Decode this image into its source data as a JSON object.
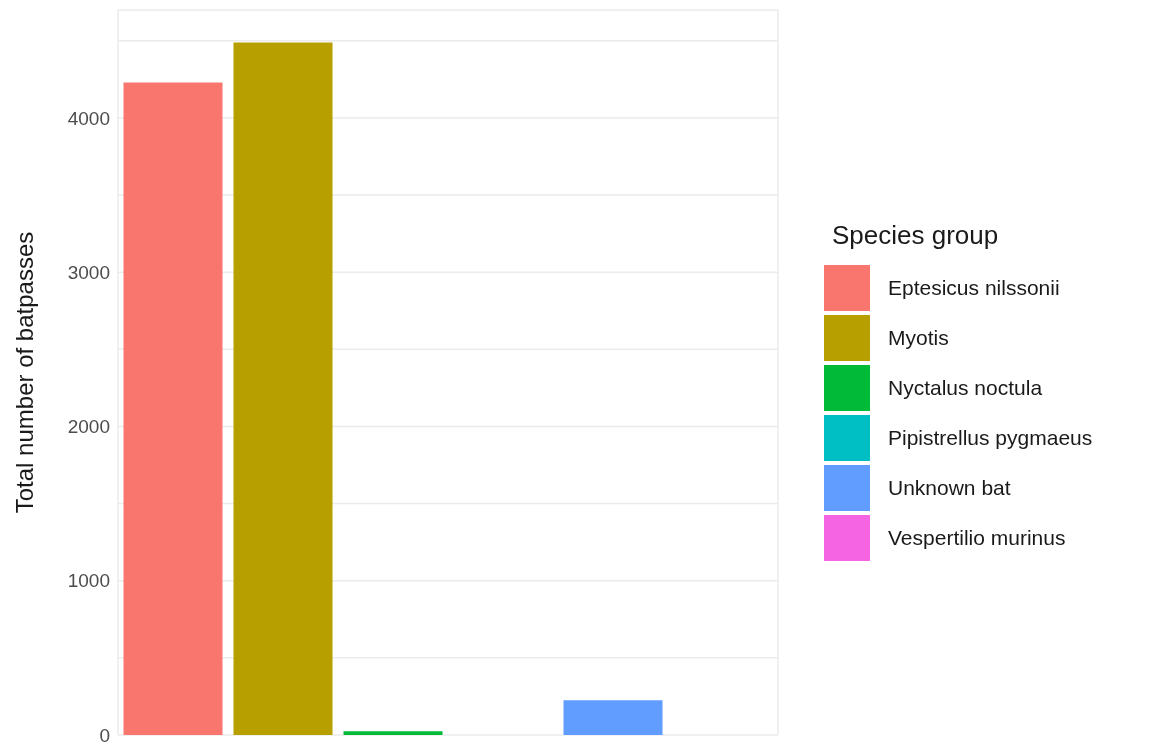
{
  "chart_data": {
    "type": "bar",
    "ylabel": "Total number of batpasses",
    "legend_title": "Species group",
    "categories": [
      null,
      null,
      null,
      null,
      null,
      null
    ],
    "stacked": true,
    "series": [
      {
        "name": "Eptesicus nilssonii",
        "color": "#f8766d",
        "values": [
          4230,
          null,
          null,
          null,
          null,
          null
        ]
      },
      {
        "name": "Myotis",
        "color": "#b79f00",
        "values": [
          null,
          4490,
          null,
          null,
          null,
          null
        ]
      },
      {
        "name": "Nyctalus noctula",
        "color": "#00ba38",
        "values": [
          null,
          null,
          25,
          null,
          null,
          null
        ]
      },
      {
        "name": "Pipistrellus pygmaeus",
        "color": "#00bfc4",
        "values": [
          null,
          null,
          null,
          null,
          null,
          null
        ]
      },
      {
        "name": "Unknown bat",
        "color": "#619cff",
        "values": [
          null,
          null,
          null,
          null,
          225,
          null
        ]
      },
      {
        "name": "Vespertilio murinus",
        "color": "#f564e3",
        "values": [
          null,
          null,
          null,
          null,
          null,
          null
        ]
      }
    ],
    "ylim": [
      0,
      4700
    ],
    "yticks": [
      0,
      {
        "value": 500,
        "label": null
      },
      1000,
      {
        "value": 1500,
        "label": null
      },
      2000,
      {
        "value": 2500,
        "label": null
      },
      3000,
      {
        "value": 3500,
        "label": null
      },
      4000,
      {
        "value": 4500,
        "label": null
      }
    ],
    "grid": true,
    "legend": "right",
    "tick_labels": "y"
  }
}
